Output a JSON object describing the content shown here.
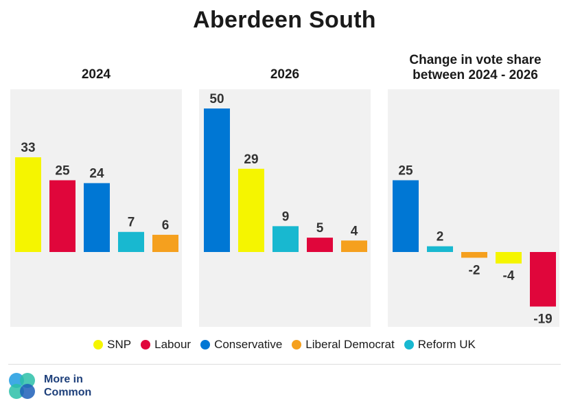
{
  "title": "Aberdeen South",
  "colors": {
    "SNP": "#f5f500",
    "Labour": "#e0063b",
    "Conservative": "#0077d4",
    "Liberal Democrat": "#f5a01e",
    "Reform UK": "#18b8d0"
  },
  "chart_data": [
    {
      "type": "bar",
      "title": "2024",
      "categories": [
        "SNP",
        "Labour",
        "Conservative",
        "Reform UK",
        "Liberal Democrat"
      ],
      "values": [
        33,
        25,
        24,
        7,
        6
      ]
    },
    {
      "type": "bar",
      "title": "2026",
      "categories": [
        "Conservative",
        "SNP",
        "Reform UK",
        "Labour",
        "Liberal Democrat"
      ],
      "values": [
        50,
        29,
        9,
        5,
        4
      ]
    },
    {
      "type": "bar",
      "title": "Change in vote share between 2024 - 2026",
      "categories": [
        "Conservative",
        "Reform UK",
        "Liberal Democrat",
        "SNP",
        "Labour"
      ],
      "values": [
        25,
        2,
        -2,
        -4,
        -19
      ]
    }
  ],
  "legend": [
    "SNP",
    "Labour",
    "Conservative",
    "Liberal Democrat",
    "Reform UK"
  ],
  "logo": {
    "line1": "More in",
    "line2": "Common"
  }
}
